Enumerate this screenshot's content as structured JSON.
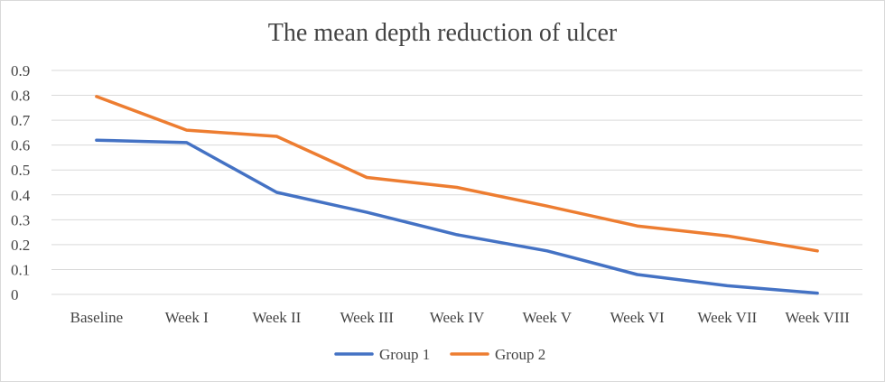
{
  "chart_data": {
    "type": "line",
    "title": "The mean depth reduction of ulcer",
    "xlabel": "",
    "ylabel": "",
    "categories": [
      "Baseline",
      "Week I",
      "Week II",
      "Week III",
      "Week IV",
      "Week V",
      "Week VI",
      "Week VII",
      "Week VIII"
    ],
    "series": [
      {
        "name": "Group 1",
        "color": "#4472C4",
        "values": [
          0.62,
          0.61,
          0.41,
          0.33,
          0.24,
          0.175,
          0.08,
          0.035,
          0.005
        ]
      },
      {
        "name": "Group 2",
        "color": "#ED7D31",
        "values": [
          0.795,
          0.66,
          0.635,
          0.47,
          0.43,
          0.355,
          0.275,
          0.235,
          0.175
        ]
      }
    ],
    "ylim": [
      0,
      0.9
    ],
    "yticks": [
      "0",
      "0.1",
      "0.2",
      "0.3",
      "0.4",
      "0.5",
      "0.6",
      "0.7",
      "0.8",
      "0.9"
    ],
    "grid": true,
    "legend_position": "bottom"
  }
}
